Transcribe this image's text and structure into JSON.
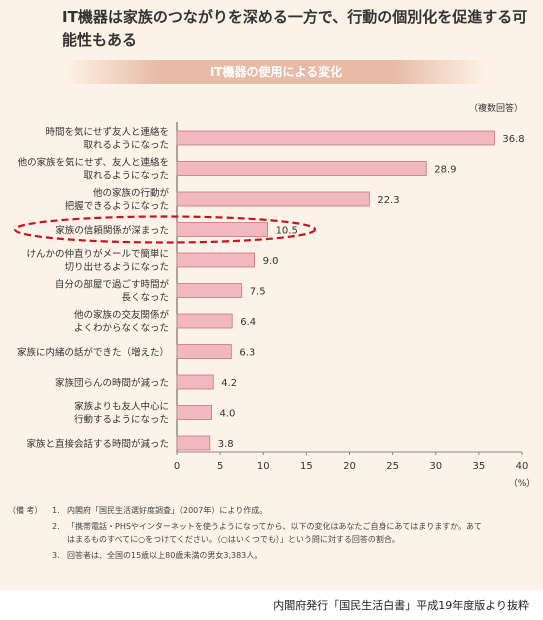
{
  "headline": "IT機器は家族のつながりを深める一方で、行動の個別化を促進する可能性もある",
  "chart_data": {
    "type": "bar",
    "orientation": "horizontal",
    "title": "IT機器の使用による変化",
    "note": "（複数回答）",
    "categories": [
      [
        "時間を気にせず友人と連絡を",
        "取れるようになった"
      ],
      [
        "他の家族を気にせず、友人と連絡を",
        "取れるようになった"
      ],
      [
        "他の家族の行動が",
        "把握できるようになった"
      ],
      [
        "家族の信頼関係が深まった"
      ],
      [
        "けんかの仲直りがメールで簡単に",
        "切り出せるようになった"
      ],
      [
        "自分の部屋で過ごす時間が",
        "長くなった"
      ],
      [
        "他の家族の交友関係が",
        "よくわからなくなった"
      ],
      [
        "家族に内緒の話ができた（増えた）"
      ],
      [
        "家族団らんの時間が減った"
      ],
      [
        "家族よりも友人中心に",
        "行動するようになった"
      ],
      [
        "家族と直接会話する時間が減った"
      ]
    ],
    "values": [
      36.8,
      28.9,
      22.3,
      10.5,
      9.0,
      7.5,
      6.4,
      6.3,
      4.2,
      4.0,
      3.8
    ],
    "value_labels": [
      "36.8",
      "28.9",
      "22.3",
      "10.5",
      "9.0",
      "7.5",
      "6.4",
      "6.3",
      "4.2",
      "4.0",
      "3.8"
    ],
    "xlim": [
      0,
      40
    ],
    "xticks": [
      "0",
      "5",
      "10",
      "15",
      "20",
      "25",
      "30",
      "35",
      "40"
    ],
    "xunit": "（%）",
    "highlighted_index": 3,
    "bar_color": "#f2b8c0",
    "bar_edge_color": "#c87480",
    "highlight_color": "#c8141e"
  },
  "remarks": {
    "label": "（備 考）",
    "items": [
      {
        "num": "1.",
        "lines": [
          "内閣府「国民生活選好度調査」（2007年）により作成。"
        ]
      },
      {
        "num": "2.",
        "lines": [
          "「携帯電話・PHSやインターネットを使うようになってから、以下の変化はあなたご自身にあてはまりますか。あて",
          "はまるものすべてに○をつけてください。（○はいくつでも）」という問に対する回答の割合。"
        ]
      },
      {
        "num": "3.",
        "lines": [
          "回答者は、全国の15歳以上80歳未満の男女3,383人。"
        ]
      }
    ]
  },
  "credit": "内閣府発行「国民生活白書」平成19年度版より抜粋"
}
